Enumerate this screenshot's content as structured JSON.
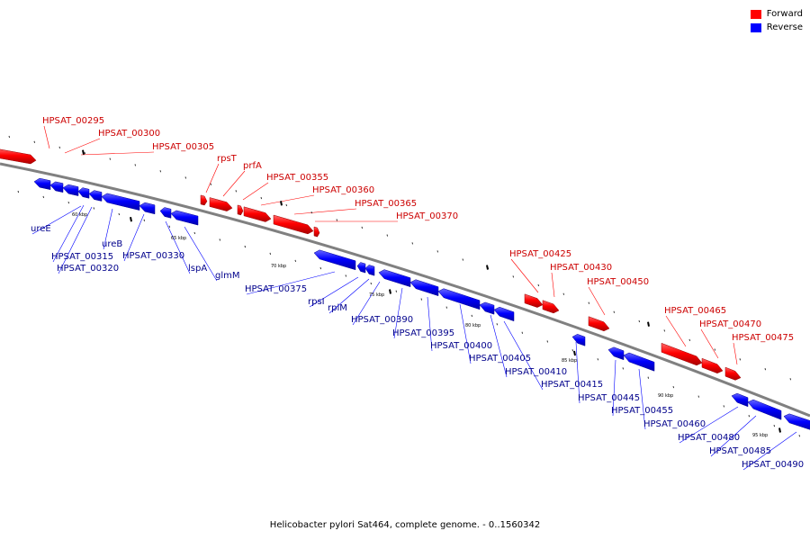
{
  "title": "Helicobacter pylori Sat464, complete genome. - 0..1560342",
  "colors": {
    "forward": "#ff0000",
    "reverse": "#0000ff",
    "backbone": "#808080",
    "forward_label": "#cc0000",
    "reverse_label": "#00008b"
  },
  "legend": [
    {
      "label": "Forward",
      "color": "#ff0000"
    },
    {
      "label": "Reverse",
      "color": "#0000ff"
    }
  ],
  "scale_labels": [
    "60 kbp",
    "65 kbp",
    "70 kbp",
    "75 kbp",
    "80 kbp",
    "85 kbp",
    "90 kbp",
    "95 kbp"
  ],
  "forward_genes": [
    "HPSAT_00295",
    "HPSAT_00300",
    "HPSAT_00305",
    "rpsT",
    "prfA",
    "HPSAT_00355",
    "HPSAT_00360",
    "HPSAT_00365",
    "HPSAT_00370",
    "HPSAT_00425",
    "HPSAT_00430",
    "HPSAT_00450",
    "HPSAT_00465",
    "HPSAT_00470",
    "HPSAT_00475"
  ],
  "reverse_genes": [
    "ureE",
    "HPSAT_00315",
    "HPSAT_00320",
    "ureB",
    "HPSAT_00330",
    "lspA",
    "glmM",
    "HPSAT_00375",
    "rpsI",
    "rplM",
    "HPSAT_00390",
    "HPSAT_00395",
    "HPSAT_00400",
    "HPSAT_00405",
    "HPSAT_00410",
    "HPSAT_00415",
    "HPSAT_00445",
    "HPSAT_00455",
    "HPSAT_00460",
    "HPSAT_00480",
    "HPSAT_00485",
    "HPSAT_00490"
  ]
}
